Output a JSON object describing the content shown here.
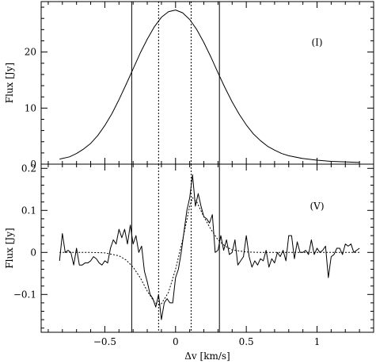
{
  "chart_data": [
    {
      "type": "line",
      "panel": "top",
      "label": "(I)",
      "ylabel": "Flux [Jy]",
      "xlabel": "",
      "xlim": [
        -0.95,
        1.4
      ],
      "ylim": [
        0,
        29
      ],
      "yticks": [
        0,
        10,
        20
      ],
      "xticks": [
        -0.5,
        0,
        0.5,
        1
      ],
      "grid": false,
      "vlines_solid": [
        -0.31,
        0.31
      ],
      "vlines_dotted": [
        -0.12,
        0.11
      ],
      "series": [
        {
          "style": "solid",
          "x": [
            -0.82,
            -0.75,
            -0.7,
            -0.65,
            -0.6,
            -0.55,
            -0.5,
            -0.45,
            -0.4,
            -0.35,
            -0.3,
            -0.25,
            -0.2,
            -0.15,
            -0.1,
            -0.05,
            0.0,
            0.05,
            0.1,
            0.15,
            0.2,
            0.25,
            0.3,
            0.35,
            0.4,
            0.45,
            0.5,
            0.55,
            0.6,
            0.65,
            0.7,
            0.75,
            0.8,
            0.9,
            1.0,
            1.1,
            1.2,
            1.3
          ],
          "y": [
            0.9,
            1.3,
            1.9,
            2.7,
            3.7,
            5.1,
            6.9,
            9.0,
            11.5,
            14.2,
            17.0,
            19.8,
            22.3,
            24.5,
            26.2,
            27.2,
            27.5,
            27.0,
            25.8,
            24.0,
            21.7,
            19.1,
            16.3,
            13.6,
            11.1,
            8.9,
            7.0,
            5.4,
            4.2,
            3.2,
            2.5,
            1.9,
            1.5,
            1.0,
            0.7,
            0.5,
            0.4,
            0.3
          ]
        }
      ]
    },
    {
      "type": "line",
      "panel": "bottom",
      "label": "(V)",
      "ylabel": "Flux [Jy]",
      "xlabel": "Δv [km/s]",
      "xlim": [
        -0.95,
        1.4
      ],
      "ylim": [
        -0.19,
        0.21
      ],
      "yticks": [
        -0.1,
        0,
        0.1,
        0.2
      ],
      "xticks": [
        -0.5,
        0,
        0.5,
        1
      ],
      "xticklabels": [
        "−0.5",
        "0",
        "0.5",
        "1"
      ],
      "grid": false,
      "vlines_solid": [
        -0.31,
        0.31
      ],
      "vlines_dotted": [
        -0.12,
        0.11
      ],
      "series": [
        {
          "style": "solid",
          "x": [
            -0.82,
            -0.8,
            -0.78,
            -0.76,
            -0.74,
            -0.72,
            -0.7,
            -0.68,
            -0.66,
            -0.64,
            -0.62,
            -0.6,
            -0.58,
            -0.56,
            -0.54,
            -0.52,
            -0.5,
            -0.48,
            -0.46,
            -0.44,
            -0.42,
            -0.4,
            -0.38,
            -0.36,
            -0.34,
            -0.32,
            -0.3,
            -0.28,
            -0.26,
            -0.24,
            -0.22,
            -0.2,
            -0.18,
            -0.16,
            -0.14,
            -0.12,
            -0.1,
            -0.08,
            -0.06,
            -0.04,
            -0.02,
            0.0,
            0.02,
            0.04,
            0.06,
            0.08,
            0.1,
            0.12,
            0.14,
            0.16,
            0.18,
            0.2,
            0.22,
            0.24,
            0.26,
            0.28,
            0.3,
            0.32,
            0.34,
            0.36,
            0.38,
            0.4,
            0.42,
            0.44,
            0.46,
            0.48,
            0.5,
            0.52,
            0.54,
            0.56,
            0.58,
            0.6,
            0.62,
            0.64,
            0.66,
            0.68,
            0.7,
            0.72,
            0.74,
            0.76,
            0.78,
            0.8,
            0.82,
            0.84,
            0.86,
            0.88,
            0.9,
            0.92,
            0.94,
            0.96,
            0.98,
            1.0,
            1.02,
            1.04,
            1.06,
            1.08,
            1.1,
            1.12,
            1.14,
            1.16,
            1.18,
            1.2,
            1.22,
            1.24,
            1.26,
            1.28,
            1.3
          ],
          "y": [
            -0.02,
            0.045,
            0.0,
            0.005,
            0.0,
            -0.03,
            0.01,
            -0.03,
            -0.03,
            -0.025,
            -0.025,
            -0.02,
            -0.01,
            -0.015,
            -0.025,
            -0.03,
            -0.02,
            -0.025,
            0.01,
            0.03,
            0.02,
            0.055,
            0.035,
            0.055,
            0.02,
            0.065,
            0.02,
            0.04,
            0.0,
            0.015,
            -0.045,
            -0.07,
            -0.1,
            -0.11,
            -0.13,
            -0.1,
            -0.16,
            -0.12,
            -0.11,
            -0.12,
            -0.12,
            -0.06,
            -0.04,
            0.0,
            0.05,
            0.1,
            0.13,
            0.185,
            0.11,
            0.14,
            0.11,
            0.085,
            0.08,
            0.07,
            0.09,
            0.0,
            0.005,
            0.04,
            0.005,
            0.03,
            -0.005,
            0.0,
            0.03,
            -0.03,
            -0.02,
            -0.01,
            0.04,
            -0.01,
            -0.035,
            -0.02,
            -0.03,
            -0.015,
            -0.02,
            0.005,
            -0.035,
            -0.015,
            -0.025,
            0.0,
            -0.01,
            0.005,
            -0.02,
            0.04,
            0.04,
            -0.015,
            0.025,
            0.0,
            0.0,
            0.005,
            -0.005,
            0.03,
            -0.005,
            0.01,
            0.0,
            0.005,
            0.015,
            -0.06,
            -0.01,
            -0.005,
            0.01,
            0.01,
            -0.005,
            0.02,
            0.015,
            0.02,
            0.0,
            0.005,
            0.01
          ]
        },
        {
          "style": "dotted",
          "x": [
            -0.82,
            -0.6,
            -0.5,
            -0.4,
            -0.35,
            -0.3,
            -0.25,
            -0.2,
            -0.15,
            -0.12,
            -0.1,
            -0.05,
            0.0,
            0.05,
            0.1,
            0.12,
            0.15,
            0.2,
            0.25,
            0.3,
            0.35,
            0.4,
            0.5,
            0.6,
            0.8,
            1.0,
            1.3
          ],
          "y": [
            0.0,
            0.0,
            -0.001,
            -0.008,
            -0.018,
            -0.035,
            -0.06,
            -0.092,
            -0.118,
            -0.125,
            -0.122,
            -0.095,
            -0.04,
            0.03,
            0.11,
            0.13,
            0.12,
            0.085,
            0.055,
            0.03,
            0.015,
            0.006,
            0.001,
            0.0,
            0.0,
            0.0,
            0.0
          ]
        }
      ]
    }
  ]
}
